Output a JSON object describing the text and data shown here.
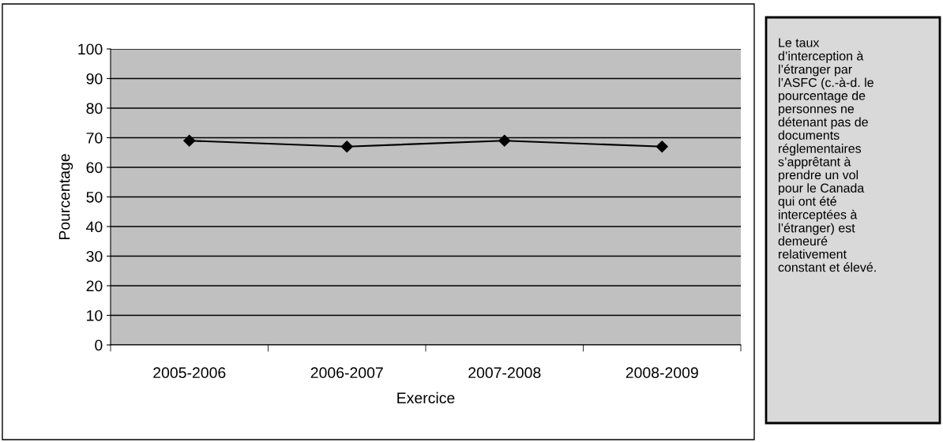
{
  "chart_data": {
    "type": "line",
    "xlabel": "Exercice",
    "ylabel": "Pourcentage",
    "categories": [
      "2005-2006",
      "2006-2007",
      "2007-2008",
      "2008-2009"
    ],
    "series": [
      {
        "color": "#000000",
        "values": [
          69,
          67,
          69,
          67
        ]
      }
    ],
    "ylim": [
      0,
      100
    ],
    "yticks": [
      0,
      10,
      20,
      30,
      40,
      50,
      60,
      70,
      80,
      90,
      100
    ],
    "grid": "y",
    "marker": "diamond",
    "line_style": "solid",
    "legend": false,
    "annotations": [
      "Le taux\nd’interception à\nl’étranger par\nl’ASFC (c.-à-d. le\npourcentage de\npersonnes ne\ndétenant pas de\ndocuments\nréglementaires\ns’apprêtant à\nprendre un vol\npour le Canada\nqui ont été\ninterceptées à\nl’étranger) est\ndemeuré\nrelativement\nconstant et élevé."
    ]
  }
}
